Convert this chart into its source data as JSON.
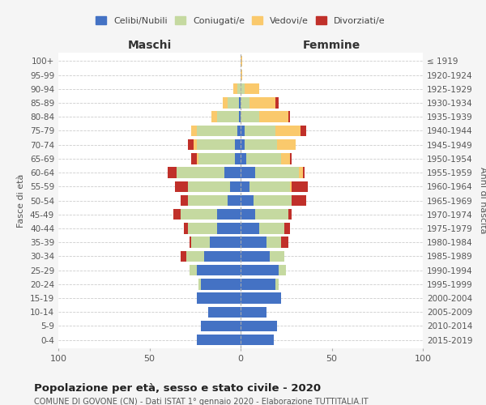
{
  "age_groups": [
    "0-4",
    "5-9",
    "10-14",
    "15-19",
    "20-24",
    "25-29",
    "30-34",
    "35-39",
    "40-44",
    "45-49",
    "50-54",
    "55-59",
    "60-64",
    "65-69",
    "70-74",
    "75-79",
    "80-84",
    "85-89",
    "90-94",
    "95-99",
    "100+"
  ],
  "birth_years": [
    "2015-2019",
    "2010-2014",
    "2005-2009",
    "2000-2004",
    "1995-1999",
    "1990-1994",
    "1985-1989",
    "1980-1984",
    "1975-1979",
    "1970-1974",
    "1965-1969",
    "1960-1964",
    "1955-1959",
    "1950-1954",
    "1945-1949",
    "1940-1944",
    "1935-1939",
    "1930-1934",
    "1925-1929",
    "1920-1924",
    "≤ 1919"
  ],
  "maschi": {
    "celibi": [
      24,
      22,
      18,
      24,
      22,
      24,
      20,
      17,
      13,
      13,
      7,
      6,
      9,
      3,
      3,
      2,
      1,
      1,
      0,
      0,
      0
    ],
    "coniugati": [
      0,
      0,
      0,
      0,
      1,
      4,
      10,
      10,
      16,
      20,
      22,
      23,
      26,
      20,
      21,
      22,
      12,
      6,
      2,
      0,
      0
    ],
    "vedovi": [
      0,
      0,
      0,
      0,
      0,
      0,
      0,
      0,
      0,
      0,
      0,
      0,
      0,
      1,
      2,
      3,
      3,
      3,
      2,
      0,
      0
    ],
    "divorziati": [
      0,
      0,
      0,
      0,
      0,
      0,
      3,
      1,
      2,
      4,
      4,
      7,
      5,
      3,
      3,
      0,
      0,
      0,
      0,
      0,
      0
    ]
  },
  "femmine": {
    "nubili": [
      18,
      20,
      14,
      22,
      19,
      21,
      16,
      14,
      10,
      8,
      7,
      5,
      8,
      3,
      2,
      2,
      0,
      0,
      0,
      0,
      0
    ],
    "coniugate": [
      0,
      0,
      0,
      0,
      2,
      4,
      8,
      8,
      14,
      18,
      21,
      22,
      24,
      19,
      18,
      17,
      10,
      5,
      2,
      0,
      0
    ],
    "vedove": [
      0,
      0,
      0,
      0,
      0,
      0,
      0,
      0,
      0,
      0,
      0,
      1,
      2,
      5,
      10,
      14,
      16,
      14,
      8,
      1,
      1
    ],
    "divorziate": [
      0,
      0,
      0,
      0,
      0,
      0,
      0,
      4,
      3,
      2,
      8,
      9,
      1,
      1,
      0,
      3,
      1,
      2,
      0,
      0,
      0
    ]
  },
  "color_celibi": "#4472c4",
  "color_coniugati": "#c5d9a0",
  "color_vedovi": "#fac96c",
  "color_divorziati": "#c0302a",
  "title": "Popolazione per età, sesso e stato civile - 2020",
  "subtitle": "COMUNE DI GOVONE (CN) - Dati ISTAT 1° gennaio 2020 - Elaborazione TUTTITALIA.IT",
  "xlabel_left": "Maschi",
  "xlabel_right": "Femmine",
  "ylabel_left": "Fasce di età",
  "ylabel_right": "Anni di nascita",
  "xlim": 100,
  "bg_color": "#f5f5f5",
  "plot_bg": "#ffffff"
}
